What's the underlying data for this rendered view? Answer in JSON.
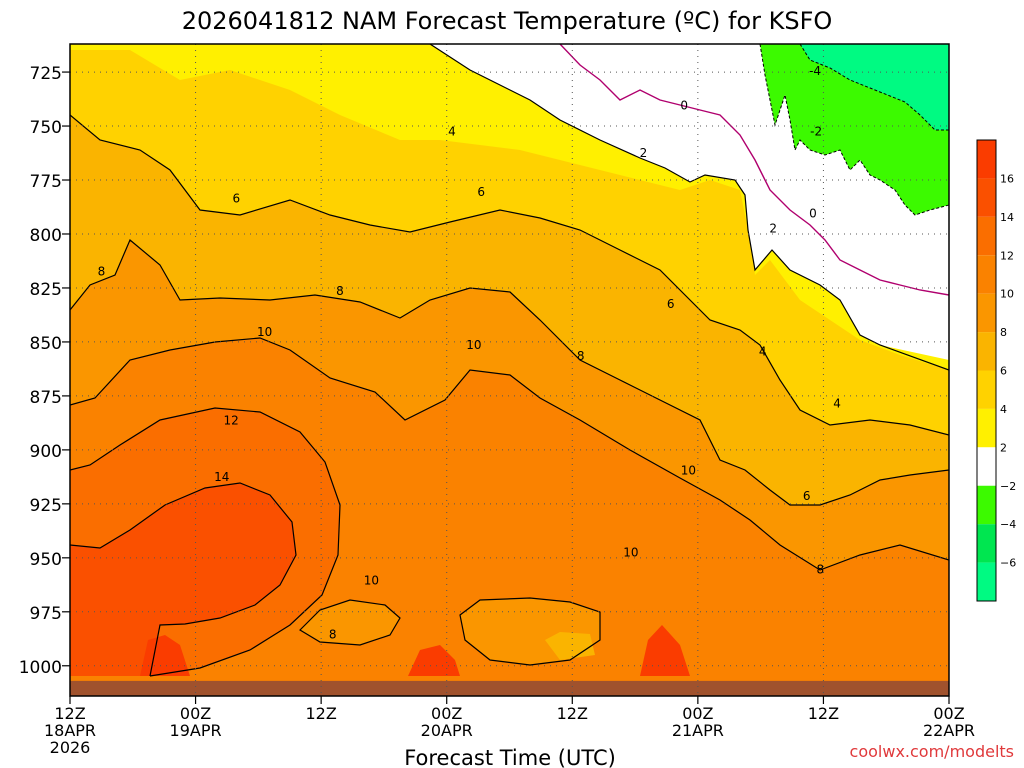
{
  "chart_data": {
    "type": "heatmap",
    "title": "2026041812 NAM Forecast Temperature (ºC) for KSFO",
    "xlabel": "Forecast Time (UTC)",
    "ylabel": "",
    "credit": "coolwx.com/modelts",
    "y_axis": {
      "pressure_levels_hpa": [
        725,
        750,
        775,
        800,
        825,
        850,
        875,
        900,
        925,
        950,
        975,
        1000
      ],
      "ylim": [
        1014,
        712
      ],
      "inverted": true
    },
    "x_axis": {
      "xlim_hours": [
        0,
        84
      ],
      "ticks": [
        {
          "hour": 0,
          "line1": "12Z",
          "line2": "18APR",
          "line3": "2026"
        },
        {
          "hour": 12,
          "line1": "00Z",
          "line2": "19APR",
          "line3": ""
        },
        {
          "hour": 24,
          "line1": "12Z",
          "line2": "",
          "line3": ""
        },
        {
          "hour": 36,
          "line1": "00Z",
          "line2": "20APR",
          "line3": ""
        },
        {
          "hour": 48,
          "line1": "12Z",
          "line2": "",
          "line3": ""
        },
        {
          "hour": 60,
          "line1": "00Z",
          "line2": "21APR",
          "line3": ""
        },
        {
          "hour": 72,
          "line1": "12Z",
          "line2": "",
          "line3": ""
        },
        {
          "hour": 84,
          "line1": "00Z",
          "line2": "22APR",
          "line3": ""
        }
      ]
    },
    "colorbar": {
      "bins": [
        {
          "from": 16,
          "to": 18,
          "color": "#fa3c00"
        },
        {
          "from": 14,
          "to": 16,
          "color": "#fa5000"
        },
        {
          "from": 12,
          "to": 14,
          "color": "#fa6e00"
        },
        {
          "from": 10,
          "to": 12,
          "color": "#fa8200"
        },
        {
          "from": 8,
          "to": 10,
          "color": "#fa9600"
        },
        {
          "from": 6,
          "to": 8,
          "color": "#fab400"
        },
        {
          "from": 4,
          "to": 6,
          "color": "#ffd200"
        },
        {
          "from": 2,
          "to": 4,
          "color": "#fff000"
        },
        {
          "from": -2,
          "to": 2,
          "color": "#ffffff"
        },
        {
          "from": -4,
          "to": -2,
          "color": "#3cfa00"
        },
        {
          "from": -6,
          "to": -4,
          "color": "#00e650"
        },
        {
          "from": -8,
          "to": -6,
          "color": "#00fa82"
        }
      ],
      "tick_labels": [
        "16",
        "14",
        "12",
        "10",
        "8",
        "6",
        "4",
        "2",
        "−2",
        "−4",
        "−6"
      ]
    },
    "ground_color": "#a0522d",
    "ground_top_pressure": 1007,
    "contour_labels": [
      {
        "text": "-4",
        "hour": 71.2,
        "p": 724
      },
      {
        "text": "-2",
        "hour": 71.3,
        "p": 752
      },
      {
        "text": "0",
        "hour": 58.7,
        "p": 740
      },
      {
        "text": "0",
        "hour": 71.0,
        "p": 790
      },
      {
        "text": "2",
        "hour": 54.8,
        "p": 762
      },
      {
        "text": "2",
        "hour": 67.2,
        "p": 797
      },
      {
        "text": "4",
        "hour": 36.5,
        "p": 752
      },
      {
        "text": "4",
        "hour": 66.2,
        "p": 854
      },
      {
        "text": "4",
        "hour": 73.3,
        "p": 878
      },
      {
        "text": "6",
        "hour": 15.9,
        "p": 783
      },
      {
        "text": "6",
        "hour": 39.3,
        "p": 780
      },
      {
        "text": "6",
        "hour": 57.4,
        "p": 832
      },
      {
        "text": "6",
        "hour": 70.4,
        "p": 921
      },
      {
        "text": "8",
        "hour": 3.0,
        "p": 817
      },
      {
        "text": "8",
        "hour": 25.8,
        "p": 826
      },
      {
        "text": "8",
        "hour": 48.8,
        "p": 856
      },
      {
        "text": "8",
        "hour": 71.7,
        "p": 955
      },
      {
        "text": "8",
        "hour": 25.1,
        "p": 985
      },
      {
        "text": "10",
        "hour": 18.6,
        "p": 845
      },
      {
        "text": "10",
        "hour": 38.6,
        "p": 851
      },
      {
        "text": "10",
        "hour": 59.1,
        "p": 909
      },
      {
        "text": "10",
        "hour": 53.6,
        "p": 947
      },
      {
        "text": "10",
        "hour": 28.8,
        "p": 960
      },
      {
        "text": "12",
        "hour": 15.4,
        "p": 886
      },
      {
        "text": "14",
        "hour": 14.5,
        "p": 912
      }
    ]
  }
}
